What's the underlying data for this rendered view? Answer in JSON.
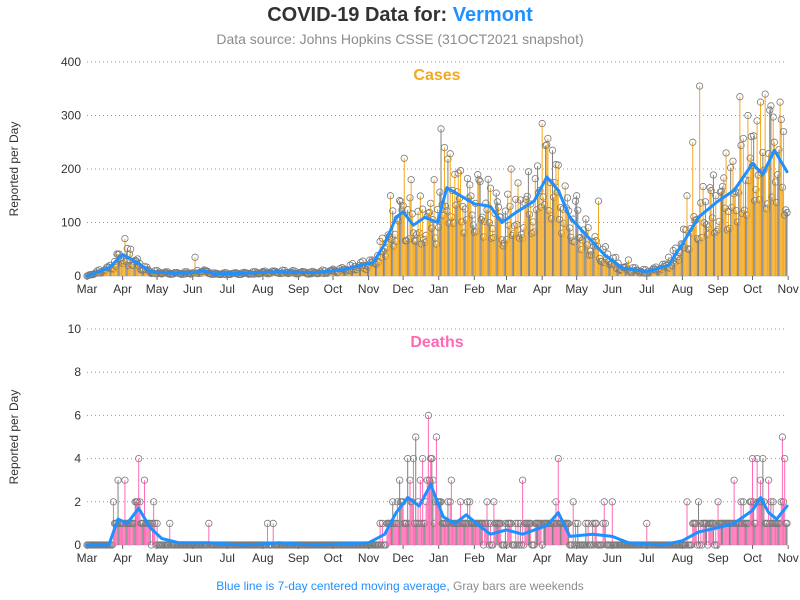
{
  "title": {
    "prefix": "COVID-19 Data for:",
    "state": "Vermont"
  },
  "subtitle": "Data source: Johns Hopkins CSSE (31OCT2021 snapshot)",
  "footnote": {
    "blue": "Blue line is 7-day centered moving average,",
    "gray": "Gray bars are weekends"
  },
  "colors": {
    "title": "#333333",
    "state": "#1e90ff",
    "cases": "#f4a81d",
    "deaths": "#ff69b4",
    "moving_avg": "#1e90ff",
    "weekend": "#808080",
    "grid": "#999999"
  },
  "chart_data": [
    {
      "type": "bar",
      "title": "Cases",
      "ylabel": "Reported per Day",
      "ylim": [
        0,
        400
      ],
      "yticks": [
        "0",
        "100",
        "200",
        "300",
        "400"
      ],
      "x_tick_labels": [
        "Mar",
        "Apr",
        "May",
        "Jun",
        "Jul",
        "Aug",
        "Sep",
        "Oct",
        "Nov",
        "Dec",
        "Jan",
        "Feb",
        "Mar",
        "Apr",
        "May",
        "Jun",
        "Jul",
        "Aug",
        "Sep",
        "Oct",
        "Nov"
      ],
      "x_range": [
        "2020-03-01",
        "2021-10-31"
      ],
      "grid": "horizontal dotted",
      "series": [
        {
          "name": "Blue line is 7-day centered moving average",
          "kind": "line",
          "points": [
            [
              "2020-03-01",
              0
            ],
            [
              "2020-03-20",
              15
            ],
            [
              "2020-04-01",
              40
            ],
            [
              "2020-04-10",
              30
            ],
            [
              "2020-04-25",
              8
            ],
            [
              "2020-05-15",
              5
            ],
            [
              "2020-06-01",
              6
            ],
            [
              "2020-06-10",
              10
            ],
            [
              "2020-06-20",
              4
            ],
            [
              "2020-07-15",
              5
            ],
            [
              "2020-08-15",
              8
            ],
            [
              "2020-09-15",
              6
            ],
            [
              "2020-10-10",
              12
            ],
            [
              "2020-10-25",
              20
            ],
            [
              "2020-11-05",
              25
            ],
            [
              "2020-11-15",
              60
            ],
            [
              "2020-11-25",
              110
            ],
            [
              "2020-12-01",
              120
            ],
            [
              "2020-12-10",
              95
            ],
            [
              "2020-12-20",
              110
            ],
            [
              "2020-12-31",
              100
            ],
            [
              "2021-01-08",
              165
            ],
            [
              "2021-01-20",
              150
            ],
            [
              "2021-02-01",
              135
            ],
            [
              "2021-02-15",
              130
            ],
            [
              "2021-02-25",
              100
            ],
            [
              "2021-03-10",
              120
            ],
            [
              "2021-03-25",
              140
            ],
            [
              "2021-04-05",
              185
            ],
            [
              "2021-04-15",
              160
            ],
            [
              "2021-04-25",
              110
            ],
            [
              "2021-05-10",
              75
            ],
            [
              "2021-05-25",
              40
            ],
            [
              "2021-06-10",
              15
            ],
            [
              "2021-07-01",
              8
            ],
            [
              "2021-07-20",
              20
            ],
            [
              "2021-08-01",
              60
            ],
            [
              "2021-08-15",
              110
            ],
            [
              "2021-09-01",
              140
            ],
            [
              "2021-09-15",
              160
            ],
            [
              "2021-10-01",
              210
            ],
            [
              "2021-10-10",
              190
            ],
            [
              "2021-10-20",
              235
            ],
            [
              "2021-10-31",
              195
            ]
          ]
        },
        {
          "name": "Daily cases",
          "kind": "bars",
          "daily_points": [
            [
              "2020-03-28",
              40
            ],
            [
              "2020-04-03",
              70
            ],
            [
              "2020-04-08",
              50
            ],
            [
              "2020-06-03",
              35
            ],
            [
              "2020-11-20",
              150
            ],
            [
              "2020-12-02",
              220
            ],
            [
              "2020-12-08",
              180
            ],
            [
              "2020-12-28",
              180
            ],
            [
              "2021-01-03",
              275
            ],
            [
              "2021-01-06",
              240
            ],
            [
              "2021-01-15",
              190
            ],
            [
              "2021-02-05",
              180
            ],
            [
              "2021-02-20",
              155
            ],
            [
              "2021-03-05",
              200
            ],
            [
              "2021-03-20",
              195
            ],
            [
              "2021-04-01",
              285
            ],
            [
              "2021-04-05",
              245
            ],
            [
              "2021-04-10",
              235
            ],
            [
              "2021-05-01",
              150
            ],
            [
              "2021-05-20",
              140
            ],
            [
              "2021-06-15",
              30
            ],
            [
              "2021-07-20",
              35
            ],
            [
              "2021-08-05",
              150
            ],
            [
              "2021-08-10",
              250
            ],
            [
              "2021-08-16",
              355
            ],
            [
              "2021-08-25",
              165
            ],
            [
              "2021-09-08",
              230
            ],
            [
              "2021-09-20",
              335
            ],
            [
              "2021-09-27",
              300
            ],
            [
              "2021-10-05",
              290
            ],
            [
              "2021-10-08",
              325
            ],
            [
              "2021-10-12",
              340
            ],
            [
              "2021-10-16",
              310
            ],
            [
              "2021-10-20",
              250
            ],
            [
              "2021-10-25",
              325
            ],
            [
              "2021-10-28",
              270
            ]
          ]
        }
      ]
    },
    {
      "type": "bar",
      "title": "Deaths",
      "ylabel": "Reported per Day",
      "ylim": [
        0,
        10
      ],
      "yticks": [
        "0",
        "2",
        "4",
        "6",
        "8",
        "10"
      ],
      "x_tick_labels": [
        "Mar",
        "Apr",
        "May",
        "Jun",
        "Jul",
        "Aug",
        "Sep",
        "Oct",
        "Nov",
        "Dec",
        "Jan",
        "Feb",
        "Mar",
        "Apr",
        "May",
        "Jun",
        "Jul",
        "Aug",
        "Sep",
        "Oct",
        "Nov"
      ],
      "x_range": [
        "2020-03-01",
        "2021-10-31"
      ],
      "grid": "horizontal dotted",
      "series": [
        {
          "name": "Blue line is 7-day centered moving average",
          "kind": "line",
          "points": [
            [
              "2020-03-01",
              0
            ],
            [
              "2020-03-20",
              0
            ],
            [
              "2020-03-28",
              1.2
            ],
            [
              "2020-04-05",
              1.0
            ],
            [
              "2020-04-15",
              1.7
            ],
            [
              "2020-04-25",
              0.8
            ],
            [
              "2020-05-05",
              0.3
            ],
            [
              "2020-05-20",
              0.1
            ],
            [
              "2020-06-15",
              0.1
            ],
            [
              "2020-07-15",
              0
            ],
            [
              "2020-08-15",
              0.1
            ],
            [
              "2020-09-15",
              0
            ],
            [
              "2020-11-01",
              0.1
            ],
            [
              "2020-11-15",
              0.5
            ],
            [
              "2020-11-25",
              1.5
            ],
            [
              "2020-12-05",
              2.2
            ],
            [
              "2020-12-15",
              1.8
            ],
            [
              "2020-12-25",
              2.8
            ],
            [
              "2021-01-05",
              1.3
            ],
            [
              "2021-01-15",
              1.0
            ],
            [
              "2021-01-25",
              1.4
            ],
            [
              "2021-02-05",
              0.9
            ],
            [
              "2021-02-15",
              0.5
            ],
            [
              "2021-03-01",
              0.7
            ],
            [
              "2021-03-15",
              0.5
            ],
            [
              "2021-04-05",
              0.9
            ],
            [
              "2021-04-15",
              1.5
            ],
            [
              "2021-04-25",
              0.4
            ],
            [
              "2021-05-15",
              0.5
            ],
            [
              "2021-06-01",
              0.4
            ],
            [
              "2021-06-15",
              0.1
            ],
            [
              "2021-07-15",
              0
            ],
            [
              "2021-08-01",
              0.2
            ],
            [
              "2021-08-15",
              0.6
            ],
            [
              "2021-09-01",
              0.8
            ],
            [
              "2021-09-15",
              1.0
            ],
            [
              "2021-10-01",
              1.6
            ],
            [
              "2021-10-08",
              2.2
            ],
            [
              "2021-10-15",
              1.5
            ],
            [
              "2021-10-22",
              1.2
            ],
            [
              "2021-10-31",
              1.8
            ]
          ]
        },
        {
          "name": "Daily deaths",
          "kind": "bars",
          "daily_points": [
            [
              "2020-03-24",
              2
            ],
            [
              "2020-03-28",
              3
            ],
            [
              "2020-04-03",
              3
            ],
            [
              "2020-04-12",
              2
            ],
            [
              "2020-04-15",
              4
            ],
            [
              "2020-04-20",
              3
            ],
            [
              "2020-04-28",
              2
            ],
            [
              "2020-05-12",
              1
            ],
            [
              "2020-06-15",
              1
            ],
            [
              "2020-08-05",
              1
            ],
            [
              "2020-08-10",
              1
            ],
            [
              "2020-11-28",
              3
            ],
            [
              "2020-12-05",
              4
            ],
            [
              "2020-12-10",
              4
            ],
            [
              "2020-12-12",
              5
            ],
            [
              "2020-12-18",
              4
            ],
            [
              "2020-12-23",
              6
            ],
            [
              "2020-12-26",
              4
            ],
            [
              "2020-12-30",
              5
            ],
            [
              "2021-01-12",
              3
            ],
            [
              "2021-01-20",
              2
            ],
            [
              "2021-02-12",
              2
            ],
            [
              "2021-02-18",
              2
            ],
            [
              "2021-03-15",
              3
            ],
            [
              "2021-04-15",
              4
            ],
            [
              "2021-04-28",
              2
            ],
            [
              "2021-05-25",
              2
            ],
            [
              "2021-06-01",
              2
            ],
            [
              "2021-07-01",
              1
            ],
            [
              "2021-08-05",
              2
            ],
            [
              "2021-08-15",
              2
            ],
            [
              "2021-09-01",
              2
            ],
            [
              "2021-09-15",
              3
            ],
            [
              "2021-10-01",
              4
            ],
            [
              "2021-10-05",
              4
            ],
            [
              "2021-10-10",
              4
            ],
            [
              "2021-10-15",
              3
            ],
            [
              "2021-10-27",
              5
            ],
            [
              "2021-10-29",
              4
            ]
          ]
        }
      ]
    }
  ]
}
